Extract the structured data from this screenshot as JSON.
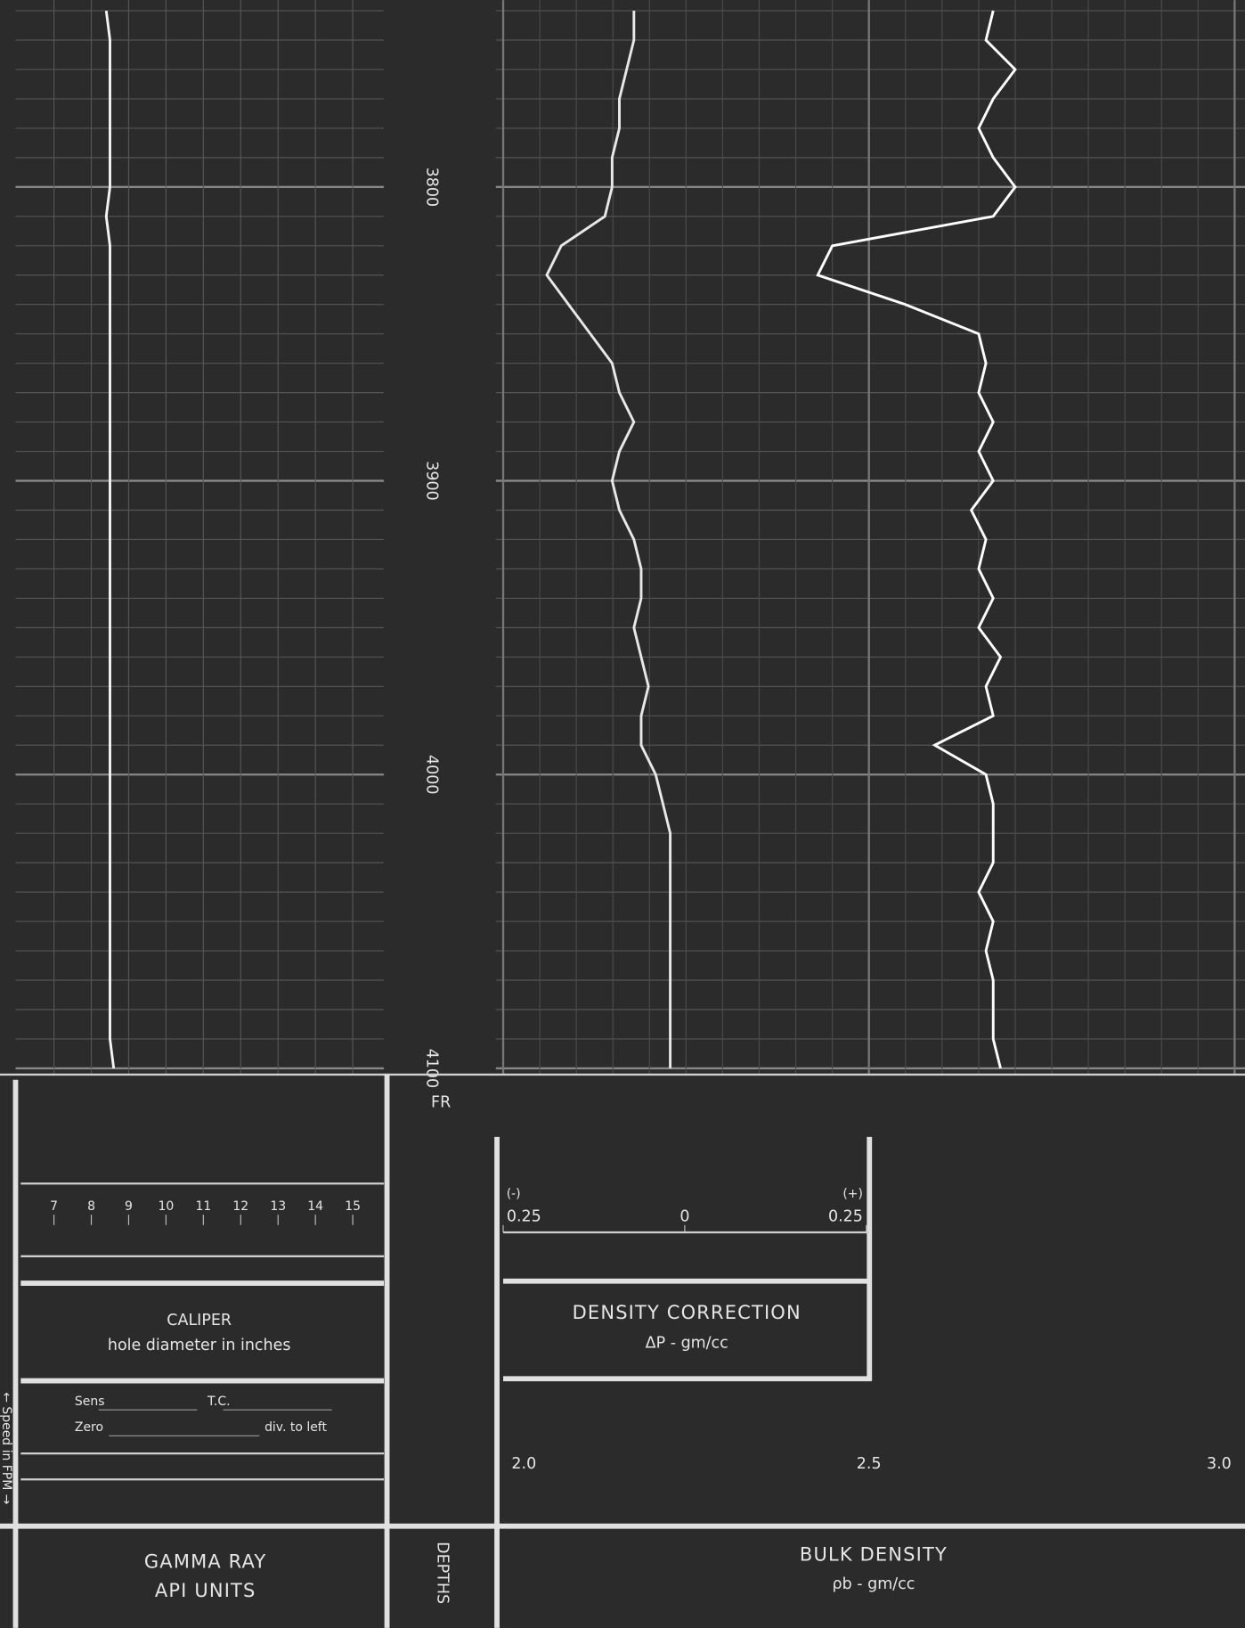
{
  "log": {
    "depth": {
      "label": "DEPTHS",
      "marker": "FR",
      "ticks": [
        3800,
        3900,
        4000,
        4100
      ],
      "samples": [
        3740,
        3750,
        3760,
        3770,
        3780,
        3790,
        3800,
        3810,
        3820,
        3830,
        3840,
        3850,
        3860,
        3870,
        3880,
        3890,
        3900,
        3910,
        3920,
        3930,
        3940,
        3950,
        3960,
        3970,
        3980,
        3990,
        4000,
        4010,
        4020,
        4030,
        4040,
        4050,
        4060,
        4070,
        4080,
        4090,
        4100
      ]
    },
    "gamma_ray": {
      "title": "GAMMA RAY",
      "subtitle": "API UNITS"
    },
    "caliper": {
      "title": "CALIPER",
      "subtitle": "hole diameter in inches",
      "color": "#f4f4f4",
      "scale": [
        7,
        8,
        9,
        10,
        11,
        12,
        13,
        14,
        15
      ],
      "values": [
        8.4,
        8.5,
        8.5,
        8.5,
        8.5,
        8.5,
        8.5,
        8.4,
        8.5,
        8.5,
        8.5,
        8.5,
        8.5,
        8.5,
        8.5,
        8.5,
        8.5,
        8.5,
        8.5,
        8.5,
        8.5,
        8.5,
        8.5,
        8.5,
        8.5,
        8.5,
        8.5,
        8.5,
        8.5,
        8.5,
        8.5,
        8.5,
        8.5,
        8.5,
        8.5,
        8.5,
        8.6
      ]
    },
    "settings": {
      "sens": "Sens",
      "tc": "T.C.",
      "zero": "Zero",
      "div": "div. to left",
      "speed": "← Speed in FPM →"
    },
    "density_correction": {
      "title": "DENSITY CORRECTION",
      "subtitle": "ΔP - gm/cc",
      "sign_left": "(-)",
      "sign_right": "(+)",
      "color": "#e8e8e8",
      "xlim": [
        -0.25,
        0.25
      ],
      "xticks": [
        {
          "value": -0.25,
          "label": "0.25"
        },
        0,
        {
          "value": 0.25,
          "label": "0.25"
        }
      ],
      "values": [
        -0.07,
        -0.07,
        -0.08,
        -0.09,
        -0.09,
        -0.1,
        -0.1,
        -0.11,
        -0.17,
        -0.19,
        -0.16,
        -0.13,
        -0.1,
        -0.09,
        -0.07,
        -0.09,
        -0.1,
        -0.09,
        -0.07,
        -0.06,
        -0.06,
        -0.07,
        -0.06,
        -0.05,
        -0.06,
        -0.06,
        -0.04,
        -0.03,
        -0.02,
        -0.02,
        -0.02,
        -0.02,
        -0.02,
        -0.02,
        -0.02,
        -0.02,
        -0.02
      ]
    },
    "bulk_density": {
      "title": "BULK DENSITY",
      "subtitle": "ρb - gm/cc",
      "color": "#ffffff",
      "xlim": [
        2,
        3
      ],
      "xticks": [
        {
          "value": 2,
          "label": "2.0"
        },
        2.5,
        {
          "value": 3,
          "label": "3.0"
        }
      ],
      "values": [
        2.67,
        2.66,
        2.7,
        2.67,
        2.65,
        2.67,
        2.7,
        2.67,
        2.45,
        2.43,
        2.55,
        2.65,
        2.66,
        2.65,
        2.67,
        2.65,
        2.67,
        2.64,
        2.66,
        2.65,
        2.67,
        2.65,
        2.68,
        2.66,
        2.67,
        2.59,
        2.66,
        2.67,
        2.67,
        2.67,
        2.65,
        2.67,
        2.66,
        2.67,
        2.67,
        2.67,
        2.68
      ]
    }
  }
}
